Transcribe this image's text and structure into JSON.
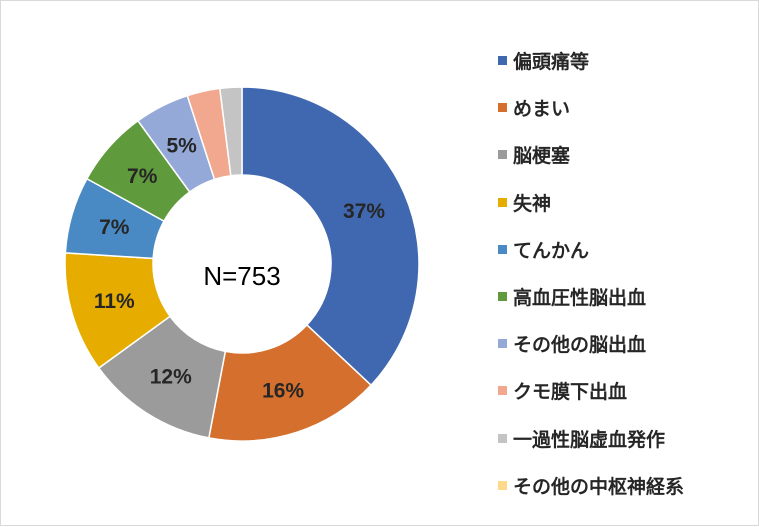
{
  "chart_data": {
    "type": "donut",
    "center_label": "N=753",
    "categories": [
      "偏頭痛等",
      "めまい",
      "脳梗塞",
      "失神",
      "てんかん",
      "高血圧性脳出血",
      "その他の脳出血",
      "クモ膜下出血",
      "一過性脳虚血発作",
      "その他の中枢神経系"
    ],
    "values": [
      37,
      16,
      12,
      11,
      7,
      7,
      5,
      3,
      2,
      0
    ],
    "data_labels": [
      "37%",
      "16%",
      "12%",
      "11%",
      "7%",
      "7%",
      "5%",
      "",
      "",
      ""
    ],
    "colors": [
      "#4068b0",
      "#d46f2d",
      "#9b9b9b",
      "#e6ad00",
      "#4a8ac4",
      "#5f9a3c",
      "#95a9d9",
      "#f2a88e",
      "#c4c4c4",
      "#ffd98a"
    ],
    "legend_position": "right"
  }
}
